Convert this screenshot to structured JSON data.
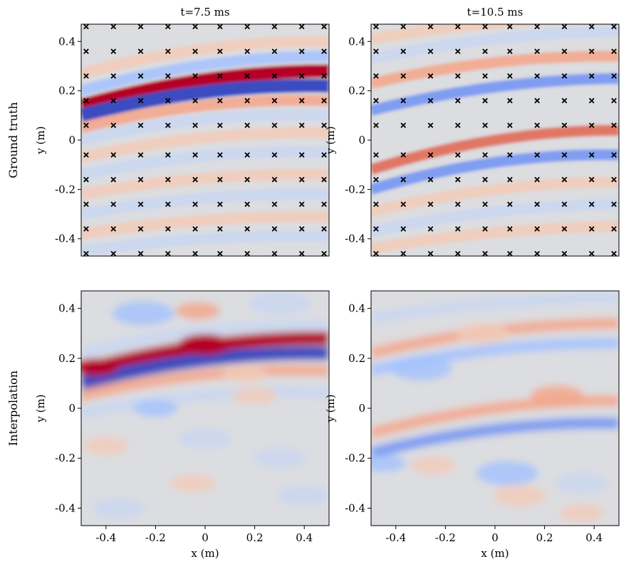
{
  "figure": {
    "column_titles": [
      "t=7.5 ms",
      "t=10.5 ms"
    ],
    "row_labels": [
      "Ground truth",
      "Interpolation"
    ]
  },
  "colors": {
    "dark_red": "#b40426",
    "red": "#e0654f",
    "light_red": "#f4a588",
    "faint_red": "#f2cbb7",
    "neutral": "#dcdde0",
    "faint_blue": "#c9d7f0",
    "light_blue": "#a3c2fe",
    "blue": "#6f92f3",
    "dark_blue": "#3b4cc0",
    "marker": "#000000",
    "axis": "#000000"
  },
  "chart_data": [
    {
      "type": "heatmap",
      "panel": "ground-truth-t7.5",
      "title": "t=7.5 ms",
      "row_label": "Ground truth",
      "xlabel": "",
      "ylabel": "y (m)",
      "xlim": [
        -0.5,
        0.5
      ],
      "ylim": [
        -0.47,
        0.47
      ],
      "xticks": [],
      "yticks": [
        0.4,
        0.2,
        0,
        -0.2,
        -0.4
      ],
      "ytick_labels": [
        "0.4",
        "0.2",
        "0",
        "-0.2",
        "-0.4"
      ],
      "colormap": "coolwarm",
      "sensors": {
        "marker": "x",
        "x": [
          -0.48,
          -0.37,
          -0.26,
          -0.15,
          -0.04,
          0.06,
          0.17,
          0.28,
          0.39,
          0.48
        ],
        "y": [
          0.46,
          0.36,
          0.26,
          0.16,
          0.06,
          -0.06,
          -0.16,
          -0.26,
          -0.36,
          -0.46
        ]
      },
      "bands": [
        {
          "intensity": 0.95,
          "y_at_x_min": 0.14,
          "y_at_x_max": 0.28,
          "curvature": 0.07
        },
        {
          "intensity": -0.95,
          "y_at_x_min": 0.1,
          "y_at_x_max": 0.22,
          "curvature": 0.07
        },
        {
          "intensity": 0.35,
          "y_at_x_min": 0.05,
          "y_at_x_max": 0.16,
          "curvature": 0.07
        },
        {
          "intensity": -0.35,
          "y_at_x_min": 0.2,
          "y_at_x_max": 0.34,
          "curvature": 0.07
        },
        {
          "intensity": 0.25,
          "y_at_x_min": 0.27,
          "y_at_x_max": 0.4,
          "curvature": 0.07
        },
        {
          "intensity": -0.25,
          "y_at_x_min": 0.0,
          "y_at_x_max": 0.1,
          "curvature": 0.07
        },
        {
          "intensity": 0.2,
          "y_at_x_min": -0.07,
          "y_at_x_max": 0.03,
          "curvature": 0.06
        },
        {
          "intensity": -0.2,
          "y_at_x_min": -0.14,
          "y_at_x_max": -0.05,
          "curvature": 0.06
        },
        {
          "intensity": 0.18,
          "y_at_x_min": -0.22,
          "y_at_x_max": -0.14,
          "curvature": 0.05
        },
        {
          "intensity": -0.18,
          "y_at_x_min": -0.3,
          "y_at_x_max": -0.22,
          "curvature": 0.05
        },
        {
          "intensity": 0.15,
          "y_at_x_min": -0.38,
          "y_at_x_max": -0.31,
          "curvature": 0.04
        },
        {
          "intensity": -0.15,
          "y_at_x_min": -0.45,
          "y_at_x_max": -0.39,
          "curvature": 0.04
        }
      ]
    },
    {
      "type": "heatmap",
      "panel": "ground-truth-t10.5",
      "title": "t=10.5 ms",
      "row_label": "Ground truth",
      "xlabel": "",
      "ylabel": "y (m)",
      "xlim": [
        -0.5,
        0.5
      ],
      "ylim": [
        -0.47,
        0.47
      ],
      "xticks": [],
      "yticks": [
        0.4,
        0.2,
        0,
        -0.2,
        -0.4
      ],
      "ytick_labels": [
        "0.4",
        "0.2",
        "0",
        "-0.2",
        "-0.4"
      ],
      "colormap": "coolwarm",
      "sensors": {
        "marker": "x",
        "x": [
          -0.48,
          -0.37,
          -0.26,
          -0.15,
          -0.04,
          0.06,
          0.17,
          0.28,
          0.39,
          0.48
        ],
        "y": [
          0.46,
          0.36,
          0.26,
          0.16,
          0.06,
          -0.06,
          -0.16,
          -0.26,
          -0.36,
          -0.46
        ]
      },
      "bands": [
        {
          "intensity": 0.35,
          "y_at_x_min": 0.23,
          "y_at_x_max": 0.34,
          "curvature": 0.06
        },
        {
          "intensity": -0.55,
          "y_at_x_min": 0.12,
          "y_at_x_max": 0.25,
          "curvature": 0.06
        },
        {
          "intensity": 0.5,
          "y_at_x_min": -0.12,
          "y_at_x_max": 0.04,
          "curvature": 0.08
        },
        {
          "intensity": -0.6,
          "y_at_x_min": -0.2,
          "y_at_x_max": -0.06,
          "curvature": 0.08
        },
        {
          "intensity": 0.25,
          "y_at_x_min": -0.29,
          "y_at_x_max": -0.17,
          "curvature": 0.06
        },
        {
          "intensity": -0.25,
          "y_at_x_min": -0.37,
          "y_at_x_max": -0.26,
          "curvature": 0.05
        },
        {
          "intensity": 0.2,
          "y_at_x_min": -0.44,
          "y_at_x_max": -0.35,
          "curvature": 0.04
        },
        {
          "intensity": -0.2,
          "y_at_x_min": 0.33,
          "y_at_x_max": 0.44,
          "curvature": 0.05
        },
        {
          "intensity": 0.15,
          "y_at_x_min": 0.41,
          "y_at_x_max": 0.5,
          "curvature": 0.04
        }
      ]
    },
    {
      "type": "heatmap",
      "panel": "interpolation-t7.5",
      "title": "",
      "row_label": "Interpolation",
      "xlabel": "x (m)",
      "ylabel": "y (m)",
      "xlim": [
        -0.5,
        0.5
      ],
      "ylim": [
        -0.47,
        0.47
      ],
      "xticks": [
        -0.4,
        -0.2,
        0,
        0.2,
        0.4
      ],
      "xtick_labels": [
        "-0.4",
        "-0.2",
        "0",
        "0.2",
        "0.4"
      ],
      "yticks": [
        0.4,
        0.2,
        0,
        -0.2,
        -0.4
      ],
      "ytick_labels": [
        "0.4",
        "0.2",
        "0",
        "-0.2",
        "-0.4"
      ],
      "colormap": "coolwarm",
      "bands": [
        {
          "intensity": 0.9,
          "y_at_x_min": 0.15,
          "y_at_x_max": 0.28,
          "curvature": 0.07
        },
        {
          "intensity": -0.95,
          "y_at_x_min": 0.1,
          "y_at_x_max": 0.22,
          "curvature": 0.07
        },
        {
          "intensity": 0.3,
          "y_at_x_min": 0.05,
          "y_at_x_max": 0.15,
          "curvature": 0.07
        },
        {
          "intensity": -0.25,
          "y_at_x_min": 0.22,
          "y_at_x_max": 0.33,
          "curvature": 0.07
        },
        {
          "intensity": -0.15,
          "y_at_x_min": -0.02,
          "y_at_x_max": 0.06,
          "curvature": 0.06
        }
      ],
      "blobs": [
        {
          "intensity": 0.85,
          "x": 0.0,
          "y": 0.255,
          "size": 0.06
        },
        {
          "intensity": 0.8,
          "x": -0.44,
          "y": 0.165,
          "size": 0.05
        },
        {
          "intensity": 0.3,
          "x": -0.03,
          "y": 0.39,
          "size": 0.05
        },
        {
          "intensity": -0.3,
          "x": -0.25,
          "y": 0.38,
          "size": 0.07
        },
        {
          "intensity": -0.25,
          "x": 0.3,
          "y": 0.42,
          "size": 0.07
        },
        {
          "intensity": 0.25,
          "x": 0.16,
          "y": 0.14,
          "size": 0.05
        },
        {
          "intensity": -0.35,
          "x": -0.2,
          "y": 0.0,
          "size": 0.05
        },
        {
          "intensity": -0.25,
          "x": 0.0,
          "y": -0.12,
          "size": 0.06
        },
        {
          "intensity": 0.2,
          "x": -0.4,
          "y": -0.15,
          "size": 0.05
        },
        {
          "intensity": -0.2,
          "x": 0.3,
          "y": -0.2,
          "size": 0.06
        },
        {
          "intensity": 0.2,
          "x": -0.05,
          "y": -0.3,
          "size": 0.05
        },
        {
          "intensity": -0.2,
          "x": 0.4,
          "y": -0.35,
          "size": 0.06
        },
        {
          "intensity": 0.2,
          "x": 0.2,
          "y": 0.05,
          "size": 0.05
        },
        {
          "intensity": -0.2,
          "x": -0.35,
          "y": -0.4,
          "size": 0.06
        }
      ]
    },
    {
      "type": "heatmap",
      "panel": "interpolation-t10.5",
      "title": "",
      "row_label": "Interpolation",
      "xlabel": "x (m)",
      "ylabel": "y (m)",
      "xlim": [
        -0.5,
        0.5
      ],
      "ylim": [
        -0.47,
        0.47
      ],
      "xticks": [
        -0.4,
        -0.2,
        0,
        0.2,
        0.4
      ],
      "xtick_labels": [
        "-0.4",
        "-0.2",
        "0",
        "0.2",
        "0.4"
      ],
      "yticks": [
        0.4,
        0.2,
        0,
        -0.2,
        -0.4
      ],
      "ytick_labels": [
        "0.4",
        "0.2",
        "0",
        "-0.2",
        "-0.4"
      ],
      "colormap": "coolwarm",
      "bands": [
        {
          "intensity": 0.3,
          "y_at_x_min": 0.22,
          "y_at_x_max": 0.34,
          "curvature": 0.06
        },
        {
          "intensity": -0.45,
          "y_at_x_min": 0.15,
          "y_at_x_max": 0.26,
          "curvature": 0.06
        },
        {
          "intensity": 0.4,
          "y_at_x_min": -0.1,
          "y_at_x_max": 0.03,
          "curvature": 0.07
        },
        {
          "intensity": -0.5,
          "y_at_x_min": -0.18,
          "y_at_x_max": -0.06,
          "curvature": 0.07
        },
        {
          "intensity": -0.15,
          "y_at_x_min": 0.36,
          "y_at_x_max": 0.44,
          "curvature": 0.04
        }
      ],
      "blobs": [
        {
          "intensity": -0.4,
          "x": -0.3,
          "y": 0.16,
          "size": 0.07
        },
        {
          "intensity": 0.3,
          "x": 0.25,
          "y": 0.05,
          "size": 0.06
        },
        {
          "intensity": -0.35,
          "x": -0.45,
          "y": -0.22,
          "size": 0.05
        },
        {
          "intensity": -0.3,
          "x": 0.05,
          "y": -0.26,
          "size": 0.07
        },
        {
          "intensity": 0.25,
          "x": -0.25,
          "y": -0.23,
          "size": 0.05
        },
        {
          "intensity": 0.2,
          "x": 0.1,
          "y": -0.35,
          "size": 0.06
        },
        {
          "intensity": -0.2,
          "x": 0.35,
          "y": -0.3,
          "size": 0.06
        },
        {
          "intensity": 0.2,
          "x": -0.05,
          "y": 0.3,
          "size": 0.06
        },
        {
          "intensity": 0.15,
          "x": 0.35,
          "y": -0.42,
          "size": 0.05
        }
      ]
    }
  ]
}
